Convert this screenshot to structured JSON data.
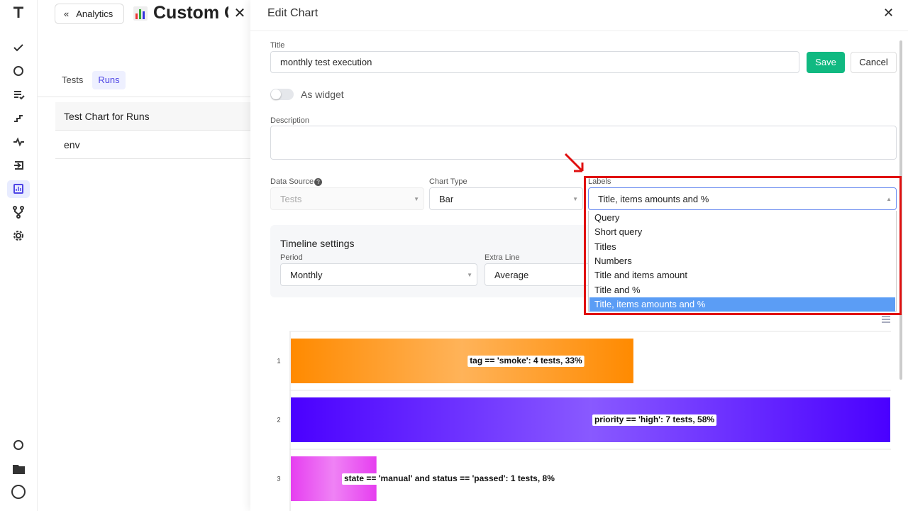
{
  "background": {
    "back_button": "Analytics",
    "title": "Custom C",
    "tabs": [
      "Tests",
      "Runs"
    ],
    "items": [
      "Test Chart for Runs",
      "env"
    ]
  },
  "drawer": {
    "title": "Edit Chart",
    "form": {
      "title_label": "Title",
      "title_value": "monthly test execution",
      "save": "Save",
      "cancel": "Cancel",
      "widget_toggle": "As widget",
      "description_label": "Description",
      "data_source_label": "Data Source",
      "data_source_value": "Tests",
      "chart_type_label": "Chart Type",
      "chart_type_value": "Bar",
      "labels_label": "Labels",
      "labels_value": "Title, items amounts and %",
      "labels_options": [
        "Query",
        "Short query",
        "Titles",
        "Numbers",
        "Title and items amount",
        "Title and %",
        "Title, items amounts and %"
      ],
      "timeline_title": "Timeline settings",
      "period_label": "Period",
      "period_value": "Monthly",
      "extra_line_label": "Extra Line",
      "extra_line_value": "Average"
    }
  },
  "chart_data": {
    "type": "bar",
    "orientation": "horizontal",
    "categories": [
      "1",
      "2",
      "3"
    ],
    "values": [
      4,
      7,
      1
    ],
    "value_labels": [
      "tag == 'smoke': 4 tests, 33%",
      "priority == 'high': 7 tests, 58%",
      "state == 'manual' and status == 'passed': 1 tests, 8%"
    ],
    "colors": [
      "#ff8a00",
      "#4a00ff",
      "#e63ef0"
    ],
    "xlim": [
      0,
      7
    ]
  }
}
